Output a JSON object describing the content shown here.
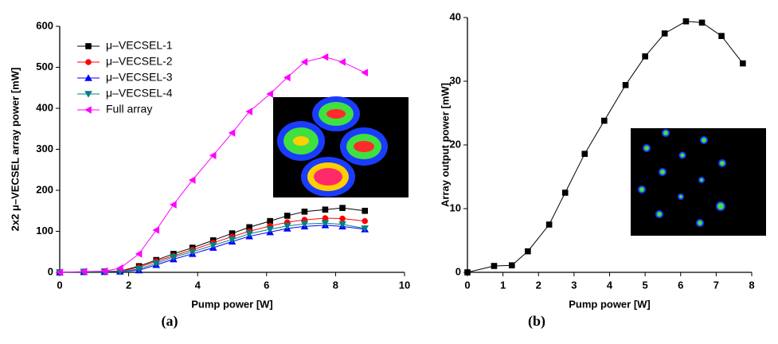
{
  "chart_data": [
    {
      "type": "line",
      "label": "(a)",
      "xlabel": "Pump power [W]",
      "ylabel": "2x2 μ–VECSEL array power [mW]",
      "xlim": [
        0,
        10
      ],
      "xticks": [
        0,
        2,
        4,
        6,
        8,
        10
      ],
      "ylim": [
        0,
        600
      ],
      "yticks": [
        0,
        100,
        200,
        300,
        400,
        500,
        600
      ],
      "legend": "upper left",
      "x": [
        0,
        0.7,
        1.3,
        1.75,
        2.3,
        2.8,
        3.3,
        3.85,
        4.45,
        5.0,
        5.5,
        6.1,
        6.6,
        7.1,
        7.7,
        8.2,
        8.85
      ],
      "series": [
        {
          "name": "μ–VECSEL-1",
          "color": "#000000",
          "marker": "square",
          "values": [
            0,
            1,
            2,
            3,
            15,
            30,
            45,
            60,
            78,
            95,
            110,
            125,
            138,
            148,
            153,
            157,
            150
          ]
        },
        {
          "name": "μ–VECSEL-2",
          "color": "#ff0000",
          "marker": "circle",
          "values": [
            0,
            1,
            2,
            3,
            12,
            27,
            40,
            55,
            72,
            87,
            100,
            113,
            122,
            128,
            132,
            131,
            125
          ]
        },
        {
          "name": "μ–VECSEL-3",
          "color": "#0000ff",
          "marker": "triangle-up",
          "values": [
            0,
            1,
            1,
            2,
            5,
            18,
            32,
            45,
            60,
            75,
            88,
            98,
            107,
            112,
            115,
            112,
            105
          ]
        },
        {
          "name": "μ–VECSEL-4",
          "color": "#008080",
          "marker": "triangle-down",
          "values": [
            0,
            1,
            1,
            2,
            8,
            22,
            37,
            50,
            66,
            80,
            94,
            105,
            113,
            118,
            120,
            117,
            107
          ]
        },
        {
          "name": "Full array",
          "color": "#ff00ff",
          "marker": "triangle-left",
          "values": [
            0,
            2,
            3,
            10,
            45,
            103,
            165,
            225,
            285,
            340,
            392,
            435,
            475,
            513,
            525,
            513,
            487
          ]
        }
      ]
    },
    {
      "type": "line",
      "label": "(b)",
      "xlabel": "Pump power [W]",
      "ylabel": "Array output power [mW]",
      "xlim": [
        0,
        8
      ],
      "xticks": [
        0,
        1,
        2,
        3,
        4,
        5,
        6,
        7,
        8
      ],
      "ylim": [
        0,
        40
      ],
      "yticks": [
        0,
        10,
        20,
        30,
        40
      ],
      "x": [
        0,
        0.75,
        1.25,
        1.7,
        2.3,
        2.75,
        3.3,
        3.85,
        4.45,
        5.0,
        5.55,
        6.15,
        6.6,
        7.15,
        7.75
      ],
      "series": [
        {
          "color": "#000000",
          "marker": "square",
          "values": [
            0,
            1,
            1.1,
            3.3,
            7.5,
            12.5,
            18.6,
            23.8,
            29.4,
            33.9,
            37.5,
            39.4,
            39.2,
            37.1,
            32.8
          ]
        }
      ]
    }
  ]
}
